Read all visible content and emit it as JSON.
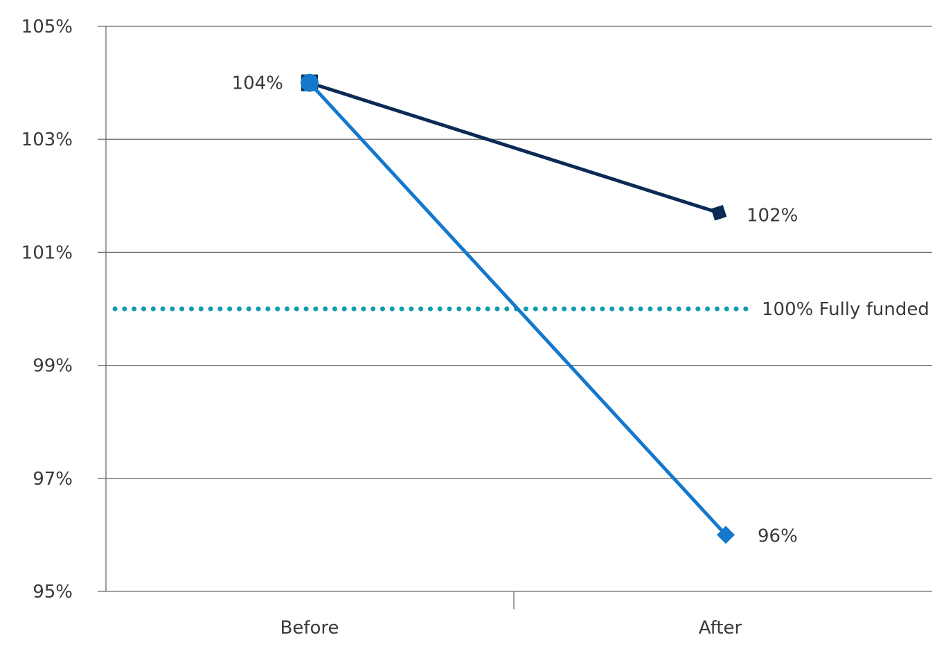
{
  "chart_data": {
    "type": "line",
    "title": "",
    "xlabel": "",
    "ylabel": "",
    "categories": [
      "Before",
      "After"
    ],
    "y_ticks": [
      95,
      97,
      99,
      101,
      103,
      105
    ],
    "y_tick_labels": [
      "95%",
      "97%",
      "99%",
      "101%",
      "103%",
      "105%"
    ],
    "ylim": [
      95,
      105
    ],
    "grid": "horizontal",
    "legend": "none",
    "series": [
      {
        "values": [
          104,
          101.7
        ],
        "labels": [
          "104%",
          "102%"
        ],
        "color": "#0b2a55",
        "marker": "square"
      },
      {
        "values": [
          104,
          96
        ],
        "labels": [
          "",
          "96%"
        ],
        "color": "#1478cc",
        "marker": "diamond"
      }
    ],
    "reference_line": {
      "value": 100,
      "label": "100% Fully funded",
      "color": "#129bb3",
      "style": "dotted"
    }
  }
}
